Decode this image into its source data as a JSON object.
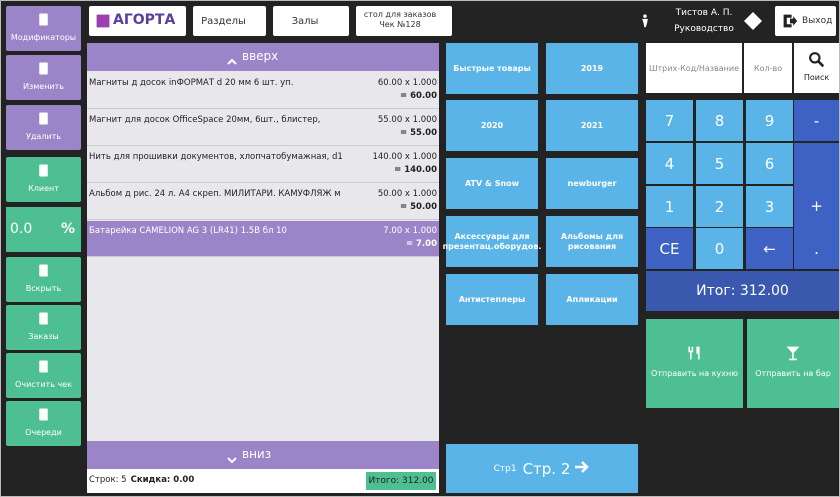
{
  "sidebar": [
    {
      "label": "Модификаторы",
      "color": "#9c84c9"
    },
    {
      "label": "Изменить",
      "color": "#9c84c9"
    },
    {
      "label": "Удалить",
      "color": "#9c84c9"
    },
    {
      "label": "Клиент",
      "color": "#4dbf92"
    },
    {
      "label": "Вскрыть",
      "color": "#4dbf92"
    },
    {
      "label": "Заказы",
      "color": "#4dbf92"
    },
    {
      "label": "Очистить чек",
      "color": "#4dbf92"
    },
    {
      "label": "Очереди",
      "color": "#4dbf92"
    }
  ],
  "discount": {
    "value": "0.0",
    "unit": "%"
  },
  "topbar": {
    "logo": "АГОРТА",
    "sections": "Разделы",
    "halls": "Залы",
    "table": {
      "line1": "стол для заказов",
      "line2": "Чек №128"
    },
    "user": {
      "name": "Тистов А. П.",
      "role": "Руководство"
    },
    "exit": "Выход"
  },
  "receipt": {
    "up": "вверх",
    "down": "вниз",
    "items": [
      {
        "name": "Магниты д досок inФОРМАТ d 20 мм 6 шт. уп.",
        "calc": "60.00 x 1.000",
        "total": "= 60.00"
      },
      {
        "name": "Магнит для досок OfficeSpace 20мм, 6шт., блистер,",
        "calc": "55.00 x 1.000",
        "total": "= 55.00"
      },
      {
        "name": "Нить для прошивки документов, хлопчатобумажная, d1",
        "calc": "140.00 x 1.000",
        "total": "= 140.00"
      },
      {
        "name": "Альбом д рис. 24 л. А4 скреп. МИЛИТАРИ. КАМУФЛЯЖ м",
        "calc": "50.00 x 1.000",
        "total": "= 50.00"
      },
      {
        "name": "Батарейка CAMELION AG 3 (LR41) 1.5В бл 10",
        "calc": "7.00 x 1.000",
        "total": "= 7.00"
      }
    ],
    "footer": {
      "rows": "Строк: 5",
      "discount": "Скидка: 0.00",
      "total": "Итого: 312.00"
    }
  },
  "categories": [
    "Быстрые товары",
    "2019",
    "2020",
    "2021",
    "ATV & Snow",
    "newburger",
    "Аксессуары для презентац.оборудов.",
    "Альбомы для рисования",
    "Антистеплеры",
    "Апликации"
  ],
  "pager": {
    "prev": "Стр1",
    "next": "Стр. 2"
  },
  "search": {
    "barcode": "Штрих-Код/Название",
    "qty": "Кол-во",
    "button": "Поиск"
  },
  "keypad": [
    [
      "7",
      "8",
      "9",
      "-"
    ],
    [
      "4",
      "5",
      "6",
      "+"
    ],
    [
      "1",
      "2",
      "3"
    ],
    [
      "CE",
      "0",
      "←",
      "."
    ]
  ],
  "total": "Итог: 312.00",
  "actions": [
    "Отправить на кухню",
    "Отправить на бар"
  ]
}
